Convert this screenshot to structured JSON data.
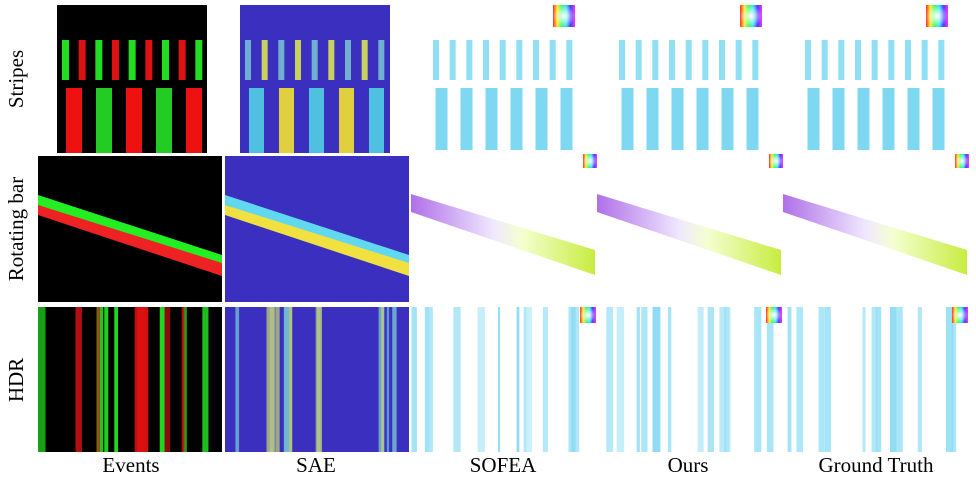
{
  "row_labels": [
    "Stripes",
    "Rotating bar",
    "HDR"
  ],
  "column_labels": [
    "Events",
    "SAE",
    "SOFEA",
    "Ours",
    "Ground Truth"
  ]
}
